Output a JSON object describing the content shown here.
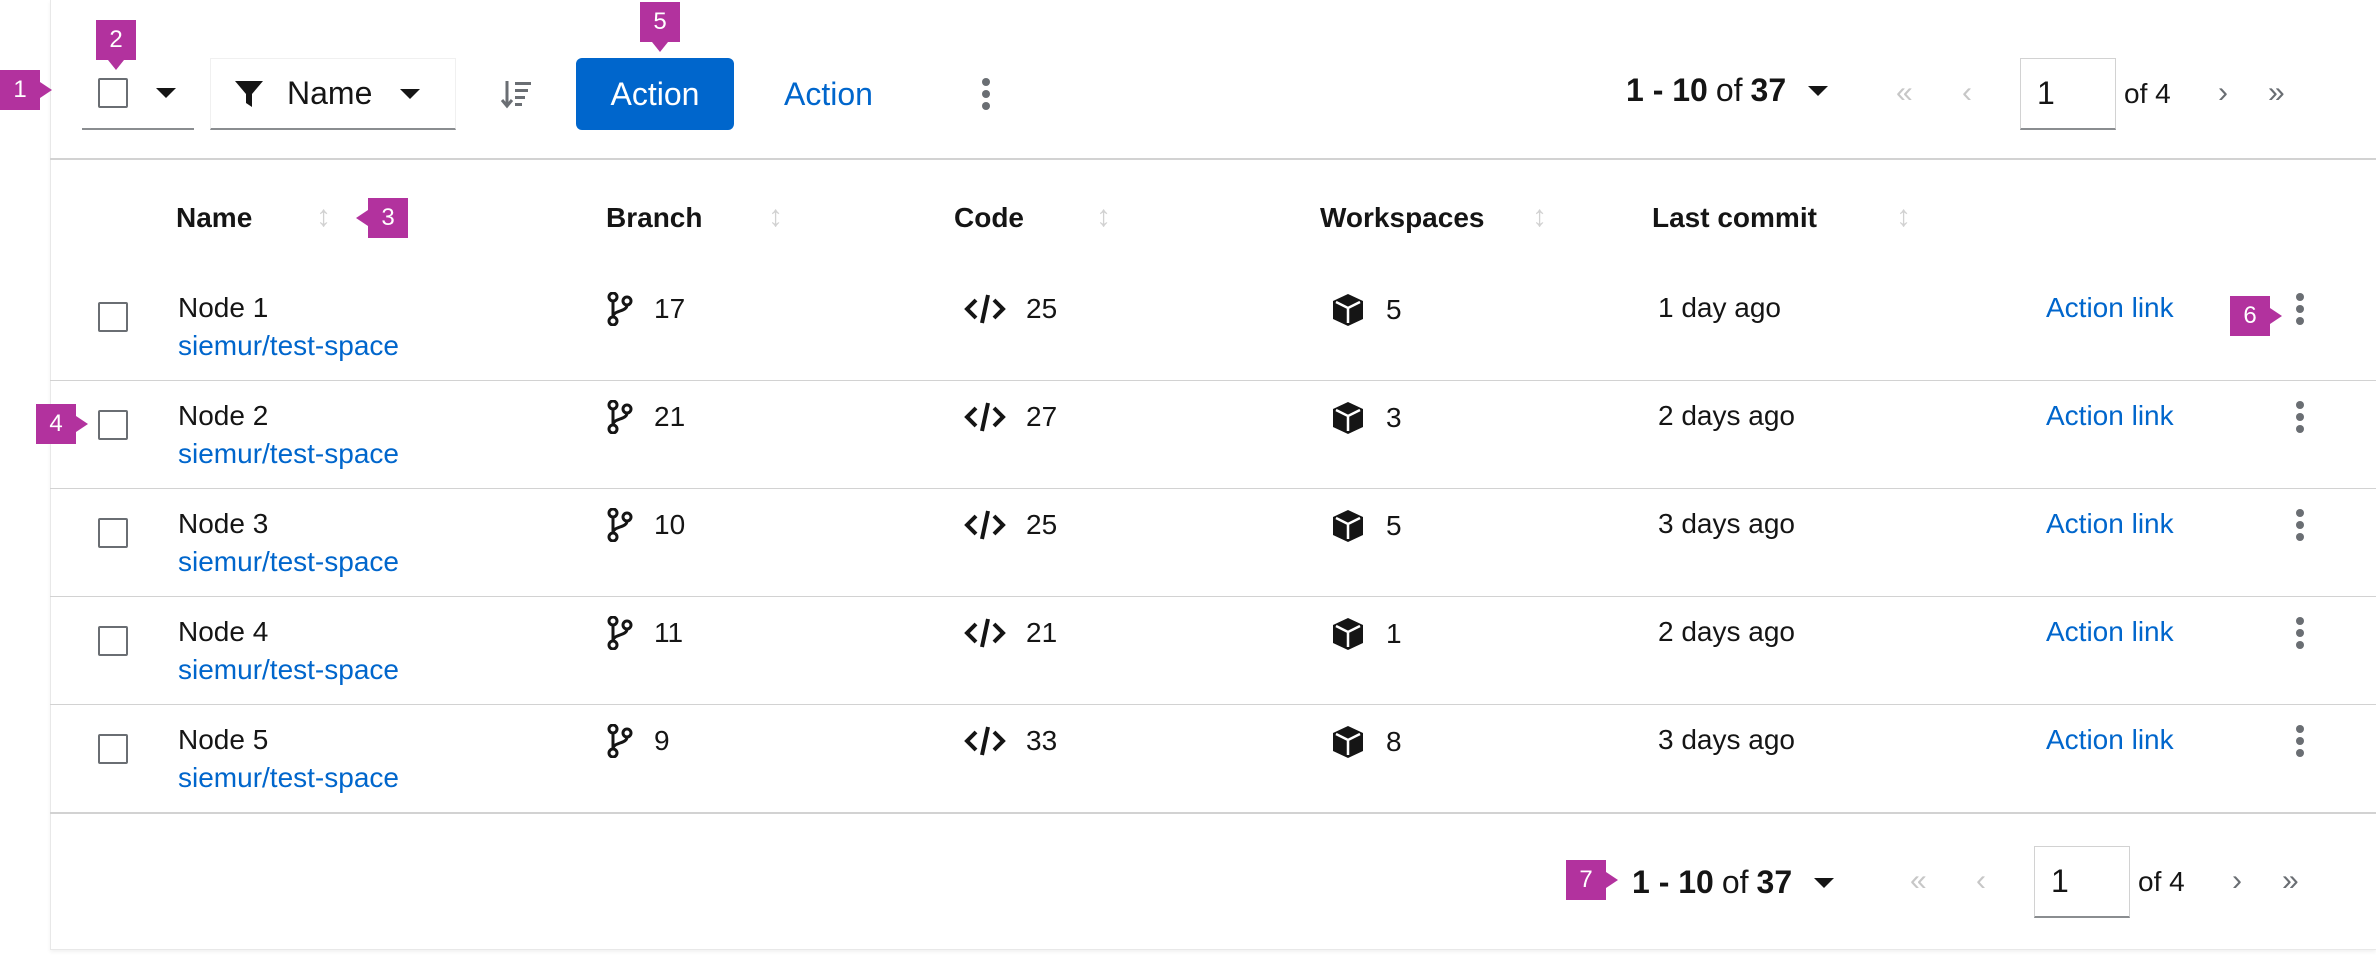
{
  "toolbar": {
    "filter_label": "Name",
    "primary_action": "Action",
    "link_action": "Action",
    "pagination": {
      "range": "1 - 10",
      "of_word": "of",
      "total": "37",
      "page": "1",
      "of_pages": "of 4"
    }
  },
  "table": {
    "columns": [
      "Name",
      "Branch",
      "Code",
      "Workspaces",
      "Last commit"
    ],
    "rows": [
      {
        "name": "Node 1",
        "link": "siemur/test-space",
        "branch": "17",
        "code": "25",
        "workspaces": "5",
        "last_commit": "1 day ago",
        "action": "Action link"
      },
      {
        "name": "Node 2",
        "link": "siemur/test-space",
        "branch": "21",
        "code": "27",
        "workspaces": "3",
        "last_commit": "2 days ago",
        "action": "Action link"
      },
      {
        "name": "Node 3",
        "link": "siemur/test-space",
        "branch": "10",
        "code": "25",
        "workspaces": "5",
        "last_commit": "3 days ago",
        "action": "Action link"
      },
      {
        "name": "Node 4",
        "link": "siemur/test-space",
        "branch": "11",
        "code": "21",
        "workspaces": "1",
        "last_commit": "2 days ago",
        "action": "Action link"
      },
      {
        "name": "Node 5",
        "link": "siemur/test-space",
        "branch": "9",
        "code": "33",
        "workspaces": "8",
        "last_commit": "3 days ago",
        "action": "Action link"
      }
    ]
  },
  "footer": {
    "pagination": {
      "range": "1 - 10",
      "of_word": "of",
      "total": "37",
      "page": "1",
      "of_pages": "of 4"
    }
  },
  "callouts": [
    "1",
    "2",
    "3",
    "4",
    "5",
    "6",
    "7"
  ],
  "icons": {
    "filter": "filter-icon",
    "sort": "sort-amount-down-icon",
    "column_sort": "sort-arrows-icon",
    "branch": "code-branch-icon",
    "code": "code-icon",
    "workspaces": "cube-icon",
    "kebab": "ellipsis-v-icon",
    "first": "angle-double-left-icon",
    "prev": "angle-left-icon",
    "next": "angle-right-icon",
    "last": "angle-double-right-icon"
  },
  "colors": {
    "primary": "#0066cc",
    "callout": "#b2329e",
    "text": "#151515",
    "muted": "#6a6e73",
    "border": "#d2d2d2"
  }
}
